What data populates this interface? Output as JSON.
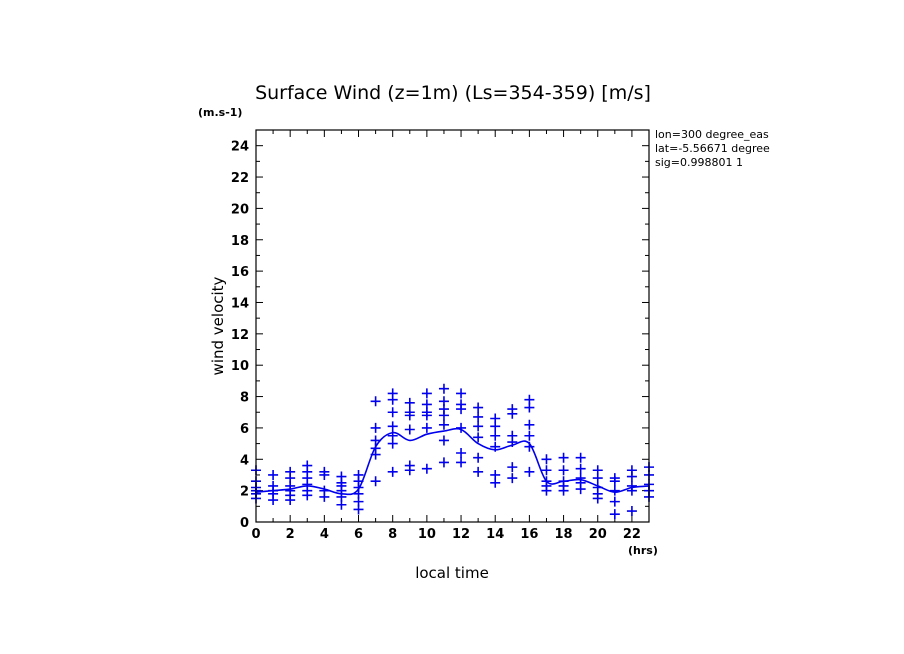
{
  "chart_data": {
    "type": "scatter",
    "title": "Surface Wind (z=1m) (Ls=354-359) [m/s]",
    "y_unit": "(m.s-1)",
    "x_unit": "(hrs)",
    "xlabel": "local time",
    "ylabel": "wind velocity",
    "xlim": [
      0,
      23
    ],
    "ylim": [
      0,
      25
    ],
    "x_tick_labels": [
      "0",
      "2",
      "4",
      "6",
      "8",
      "10",
      "12",
      "14",
      "16",
      "18",
      "20",
      "22"
    ],
    "y_tick_labels": [
      "0",
      "2",
      "4",
      "6",
      "8",
      "10",
      "12",
      "14",
      "16",
      "18",
      "20",
      "22",
      "24"
    ],
    "annotations": [
      "lon=300 degree_eas",
      "lat=-5.56671 degree",
      "sig=0.998801 1"
    ],
    "color": "#0000ee",
    "mean_line": {
      "name": "mean",
      "x": [
        0,
        1,
        2,
        3,
        4,
        5,
        6,
        7,
        8,
        9,
        10,
        11,
        12,
        13,
        14,
        15,
        16,
        17,
        18,
        19,
        20,
        21,
        22,
        23
      ],
      "y": [
        1.9,
        2.0,
        2.1,
        2.3,
        2.1,
        1.8,
        2.1,
        4.8,
        5.7,
        5.2,
        5.6,
        5.8,
        5.9,
        5.0,
        4.6,
        4.9,
        5.0,
        2.6,
        2.6,
        2.7,
        2.3,
        1.9,
        2.2,
        2.3
      ]
    },
    "points": {
      "name": "samples",
      "x": [
        0,
        0,
        0,
        0,
        0,
        0,
        1,
        1,
        1,
        1,
        1,
        2,
        2,
        2,
        2,
        2,
        2,
        3,
        3,
        3,
        3,
        3,
        3,
        4,
        4,
        4,
        4,
        5,
        5,
        5,
        5,
        5,
        5,
        6,
        6,
        6,
        6,
        6,
        6,
        7,
        7,
        7,
        7,
        7,
        7,
        8,
        8,
        8,
        8,
        8,
        8,
        8,
        9,
        9,
        9,
        9,
        9,
        9,
        10,
        10,
        10,
        10,
        10,
        10,
        11,
        11,
        11,
        11,
        11,
        11,
        11,
        12,
        12,
        12,
        12,
        12,
        12,
        13,
        13,
        13,
        13,
        13,
        13,
        14,
        14,
        14,
        14,
        14,
        14,
        15,
        15,
        15,
        15,
        15,
        15,
        16,
        16,
        16,
        16,
        16,
        16,
        17,
        17,
        17,
        17,
        17,
        18,
        18,
        18,
        18,
        18,
        19,
        19,
        19,
        19,
        19,
        20,
        20,
        20,
        20,
        20,
        21,
        21,
        21,
        21,
        21,
        22,
        22,
        22,
        22,
        22,
        23,
        23,
        23,
        23,
        23
      ],
      "y": [
        3.3,
        2.6,
        2.2,
        2.0,
        1.8,
        1.5,
        3.0,
        2.3,
        2.0,
        1.8,
        1.4,
        3.2,
        2.8,
        2.3,
        2.0,
        1.7,
        1.4,
        3.6,
        3.2,
        2.8,
        2.4,
        2.0,
        1.7,
        3.2,
        3.0,
        2.0,
        1.6,
        2.9,
        2.5,
        2.3,
        2.0,
        1.6,
        1.1,
        3.0,
        2.6,
        2.2,
        1.8,
        1.3,
        0.8,
        7.7,
        6.0,
        5.2,
        4.7,
        4.3,
        2.6,
        8.2,
        7.8,
        7.0,
        6.1,
        5.5,
        5.0,
        3.2,
        7.6,
        7.0,
        6.8,
        5.9,
        3.6,
        3.3,
        8.2,
        7.5,
        7.0,
        6.8,
        6.0,
        3.4,
        8.5,
        7.7,
        7.2,
        6.8,
        6.2,
        5.2,
        3.8,
        8.2,
        7.5,
        7.2,
        6.0,
        4.4,
        3.8,
        7.3,
        6.7,
        6.1,
        5.4,
        4.1,
        3.2,
        6.6,
        6.1,
        5.5,
        4.8,
        3.0,
        2.5,
        7.2,
        6.9,
        5.5,
        5.1,
        3.5,
        2.8,
        7.8,
        7.3,
        6.2,
        5.5,
        4.8,
        3.2,
        4.0,
        3.3,
        2.6,
        2.3,
        2.0,
        4.1,
        3.3,
        2.6,
        2.3,
        2.0,
        4.1,
        3.4,
        2.8,
        2.5,
        2.1,
        3.3,
        2.8,
        2.2,
        1.8,
        1.5,
        2.8,
        2.6,
        2.0,
        1.3,
        0.5,
        3.3,
        2.9,
        2.3,
        2.0,
        0.7,
        3.5,
        3.0,
        2.4,
        2.0,
        1.6
      ]
    }
  }
}
